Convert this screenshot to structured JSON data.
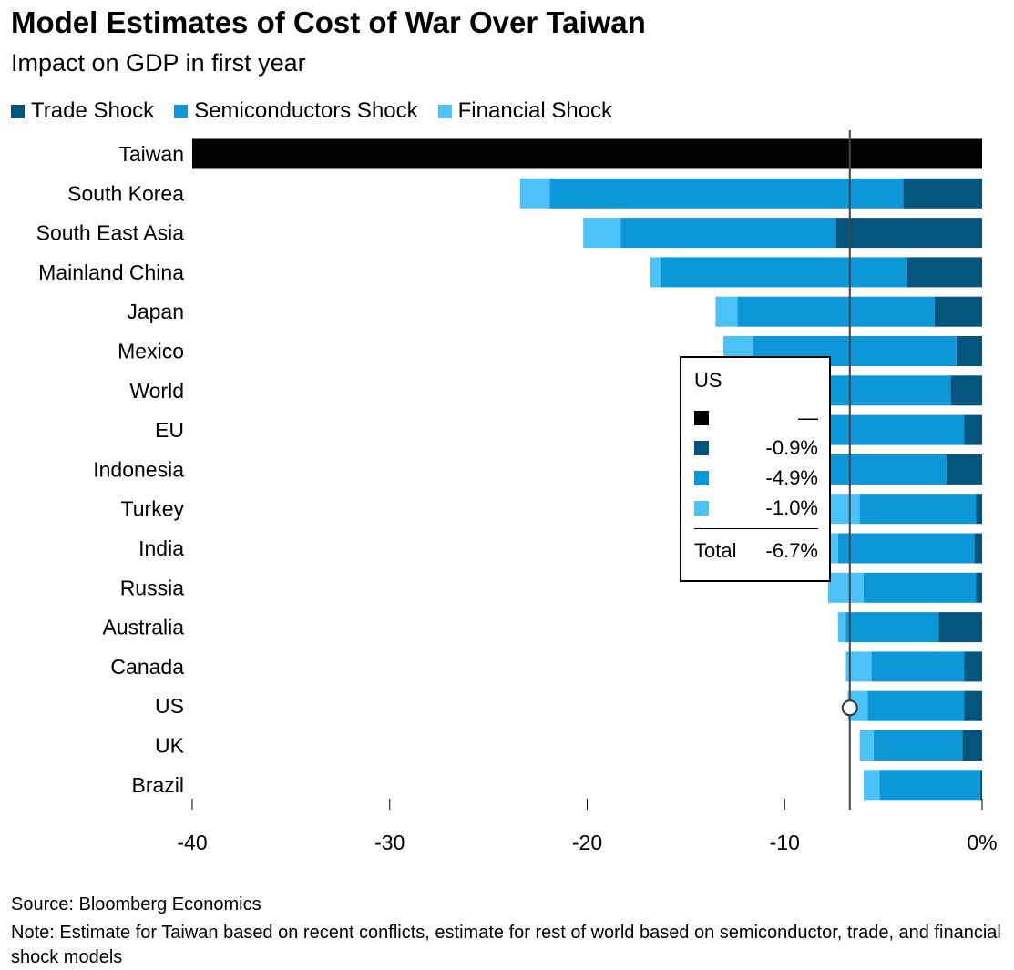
{
  "title": "Model Estimates of Cost of War Over Taiwan",
  "subtitle": "Impact on GDP in first year",
  "legend": [
    {
      "label": "Trade Shock",
      "color": "#04557d"
    },
    {
      "label": "Semiconductors Shock",
      "color": "#0c97d9"
    },
    {
      "label": "Financial Shock",
      "color": "#4bc3f9"
    }
  ],
  "taiwan_color": "#000000",
  "source": "Source: Bloomberg Economics",
  "note": "Note: Estimate for Taiwan based on recent conflicts, estimate for rest of world based on semiconductor, trade, and financial shock models",
  "tooltip": {
    "title": "US",
    "rows": [
      {
        "color": "#000000",
        "value": "—"
      },
      {
        "color": "#04557d",
        "value": "-0.9%"
      },
      {
        "color": "#0c97d9",
        "value": "-4.9%"
      },
      {
        "color": "#4bc3f9",
        "value": "-1.0%"
      }
    ],
    "total_label": "Total",
    "total_value": "-6.7%"
  },
  "chart_data": {
    "type": "bar",
    "orientation": "horizontal",
    "stacked": true,
    "categories": [
      "Taiwan",
      "South Korea",
      "South East Asia",
      "Mainland China",
      "Japan",
      "Mexico",
      "World",
      "EU",
      "Indonesia",
      "Turkey",
      "India",
      "Russia",
      "Australia",
      "Canada",
      "US",
      "UK",
      "Brazil"
    ],
    "series": [
      {
        "name": "Taiwan",
        "color": "#000000",
        "values": [
          -40,
          0,
          0,
          0,
          0,
          0,
          0,
          0,
          0,
          0,
          0,
          0,
          0,
          0,
          0,
          0,
          0
        ]
      },
      {
        "name": "Trade Shock",
        "color": "#04557d",
        "values": [
          0,
          -4.0,
          -7.4,
          -3.8,
          -2.4,
          -1.3,
          -1.6,
          -0.9,
          -1.8,
          -0.3,
          -0.4,
          -0.3,
          -2.2,
          -0.9,
          -0.9,
          -1.0,
          -0.1
        ]
      },
      {
        "name": "Semiconductors Shock",
        "color": "#0c97d9",
        "values": [
          0,
          -17.9,
          -10.9,
          -12.5,
          -10.0,
          -10.3,
          -8.3,
          -7.1,
          -7.2,
          -5.9,
          -6.9,
          -5.7,
          -4.7,
          -4.7,
          -4.9,
          -4.5,
          -5.1
        ]
      },
      {
        "name": "Financial Shock",
        "color": "#4bc3f9",
        "values": [
          0,
          -1.5,
          -1.9,
          -0.5,
          -1.1,
          -1.5,
          -1.2,
          -1.3,
          -1.2,
          -1.5,
          -0.5,
          -1.8,
          -0.4,
          -1.3,
          -1.0,
          -0.7,
          -0.8
        ]
      }
    ],
    "x_ticks": [
      "-40",
      "-30",
      "-20",
      "-10",
      "0%"
    ],
    "xlim": [
      -40,
      0
    ],
    "reference_line": {
      "value": -6.7,
      "label": "US"
    },
    "highlight_marker": {
      "category": "US",
      "value": -6.7
    }
  }
}
